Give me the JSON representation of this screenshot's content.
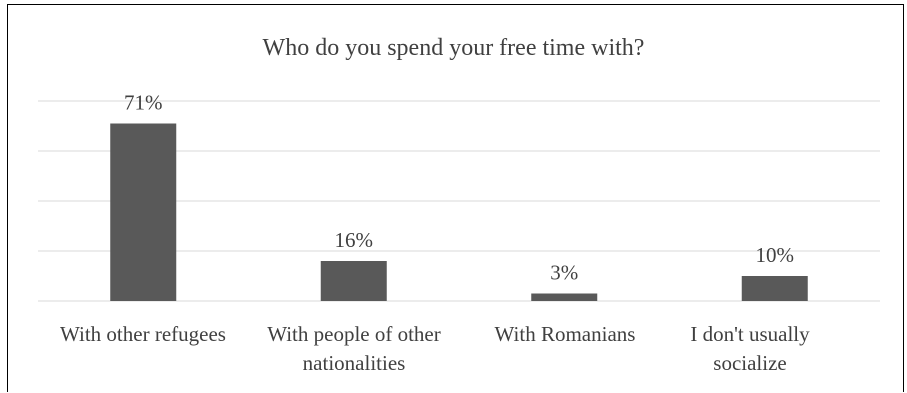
{
  "chart_data": {
    "type": "bar",
    "title": "Who do you spend your free time with?",
    "categories": [
      "With other refugees",
      "With people of other nationalities",
      "With Romanians",
      "I don't usually socialize"
    ],
    "values": [
      71,
      16,
      3,
      10
    ],
    "data_labels": [
      "71%",
      "16%",
      "3%",
      "10%"
    ],
    "ylim": [
      0,
      80
    ],
    "grid": true,
    "legend": "none",
    "bar_color": "#595959",
    "grid_color": "#d9d9d9",
    "text_color": "#404040"
  }
}
